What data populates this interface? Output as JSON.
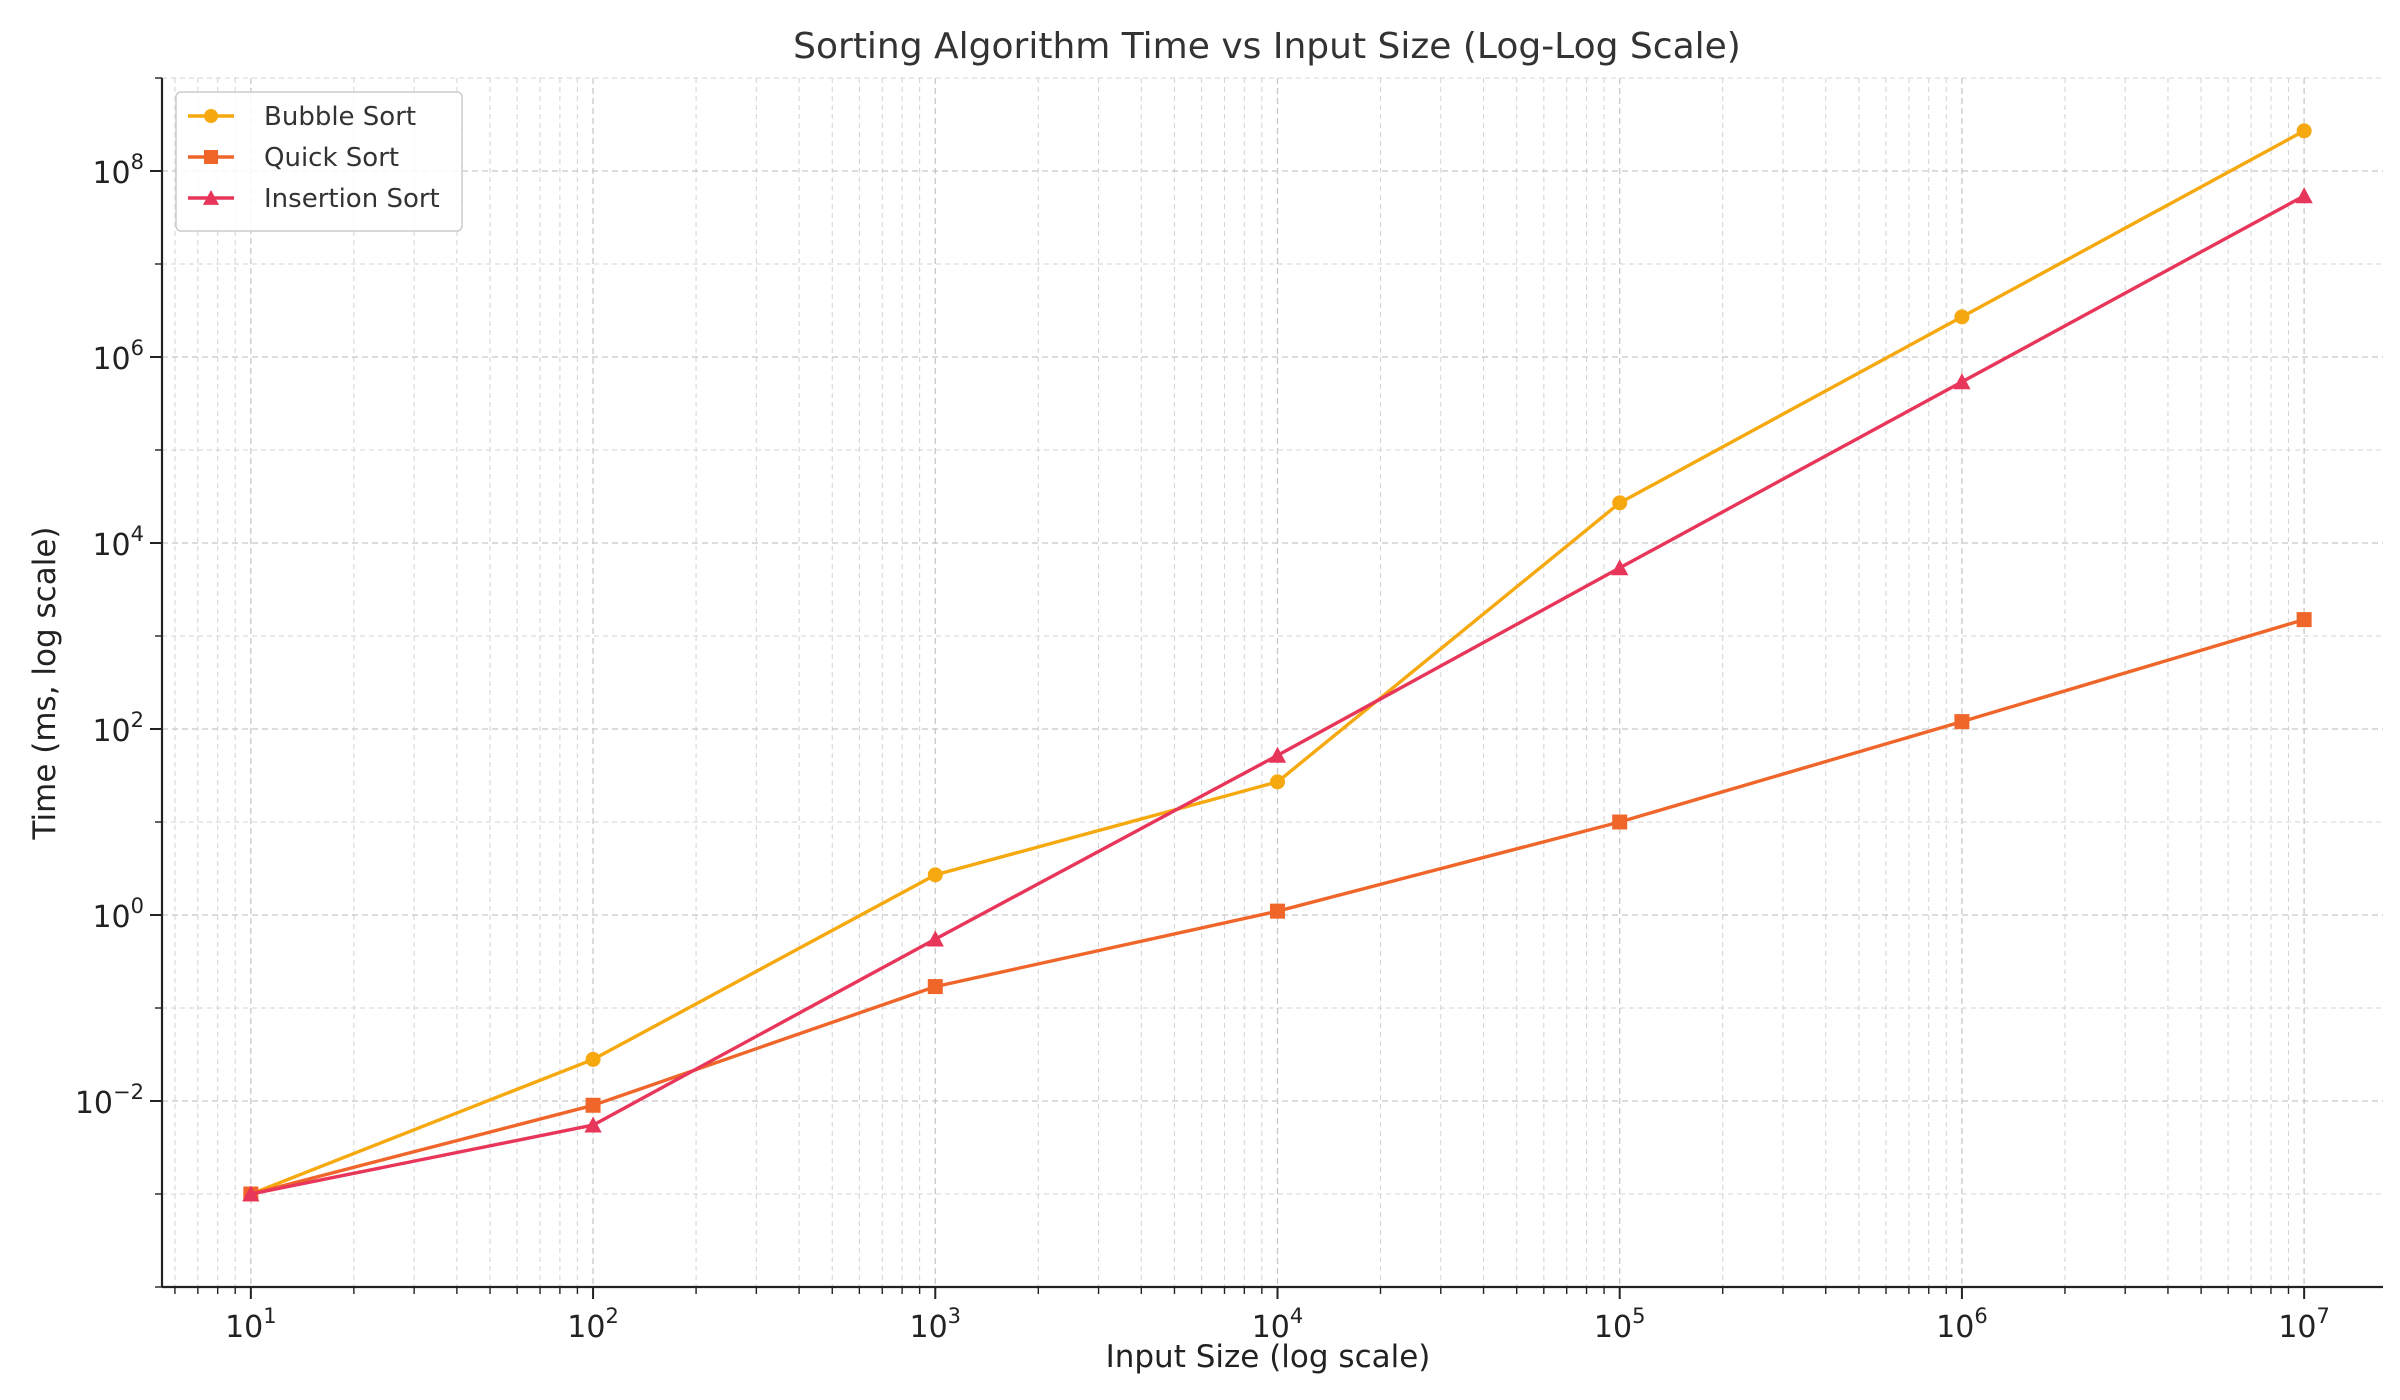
{
  "chart_data": {
    "type": "line",
    "title": "Sorting Algorithm Time vs Input Size (Log-Log Scale)",
    "xlabel": "Input Size (log scale)",
    "ylabel": "Time (ms, log scale)",
    "x_scale": "log",
    "y_scale": "log",
    "xlim": [
      5.5,
      17000000
    ],
    "ylim": [
      0.0001,
      1000000000
    ],
    "grid": true,
    "grid_style": "dashed, major and minor",
    "legend_position": "top-left",
    "x_ticks": [
      {
        "base": "10",
        "exp": "1",
        "value": 10
      },
      {
        "base": "10",
        "exp": "2",
        "value": 100
      },
      {
        "base": "10",
        "exp": "3",
        "value": 1000
      },
      {
        "base": "10",
        "exp": "4",
        "value": 10000
      },
      {
        "base": "10",
        "exp": "5",
        "value": 100000
      },
      {
        "base": "10",
        "exp": "6",
        "value": 1000000
      },
      {
        "base": "10",
        "exp": "7",
        "value": 10000000
      }
    ],
    "y_ticks": [
      {
        "base": "10",
        "exp": "−2",
        "value": 0.01
      },
      {
        "base": "10",
        "exp": "0",
        "value": 1
      },
      {
        "base": "10",
        "exp": "2",
        "value": 100
      },
      {
        "base": "10",
        "exp": "4",
        "value": 10000
      },
      {
        "base": "10",
        "exp": "6",
        "value": 1000000
      },
      {
        "base": "10",
        "exp": "8",
        "value": 100000000
      }
    ],
    "x": [
      10,
      100,
      1000,
      10000,
      100000,
      1000000,
      10000000
    ],
    "series": [
      {
        "name": "Bubble Sort",
        "color": "#f5a90f",
        "marker": "circle",
        "values": [
          0.001,
          0.028,
          2.7,
          27,
          27000,
          2700000,
          270000000
        ]
      },
      {
        "name": "Quick Sort",
        "color": "#f0662a",
        "marker": "square",
        "values": [
          0.001,
          0.009,
          0.17,
          1.1,
          10,
          120,
          1500
        ]
      },
      {
        "name": "Insertion Sort",
        "color": "#e8365a",
        "marker": "triangle",
        "values": [
          0.001,
          0.0055,
          0.55,
          52,
          5400,
          540000,
          54000000
        ]
      }
    ]
  }
}
